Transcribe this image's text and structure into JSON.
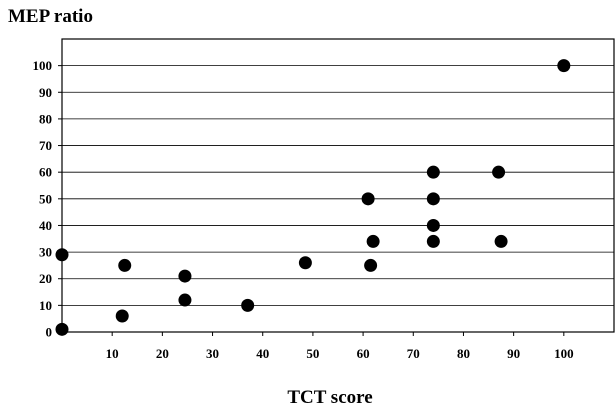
{
  "chart_data": {
    "type": "scatter",
    "title": "",
    "xlabel": "TCT score",
    "ylabel": "MEP ratio",
    "xlim": [
      0,
      110
    ],
    "ylim": [
      0,
      110
    ],
    "x_ticks": [
      10,
      20,
      30,
      40,
      50,
      60,
      70,
      80,
      90,
      100
    ],
    "y_ticks": [
      0,
      10,
      20,
      30,
      40,
      50,
      60,
      70,
      80,
      90,
      100
    ],
    "grid": {
      "horizontal": true,
      "vertical": false
    },
    "legend": "none",
    "marker_color": "#000000",
    "series": [
      {
        "points": [
          {
            "x": 0,
            "y": 1
          },
          {
            "x": 0,
            "y": 29
          },
          {
            "x": 12,
            "y": 6
          },
          {
            "x": 12.5,
            "y": 25
          },
          {
            "x": 24.5,
            "y": 21
          },
          {
            "x": 24.5,
            "y": 12
          },
          {
            "x": 37,
            "y": 10
          },
          {
            "x": 48.5,
            "y": 26
          },
          {
            "x": 61,
            "y": 50
          },
          {
            "x": 61.5,
            "y": 25
          },
          {
            "x": 62,
            "y": 34
          },
          {
            "x": 74,
            "y": 60
          },
          {
            "x": 74,
            "y": 50
          },
          {
            "x": 74,
            "y": 40
          },
          {
            "x": 74,
            "y": 34
          },
          {
            "x": 87,
            "y": 60
          },
          {
            "x": 87.5,
            "y": 34
          },
          {
            "x": 100,
            "y": 100
          }
        ]
      }
    ]
  }
}
